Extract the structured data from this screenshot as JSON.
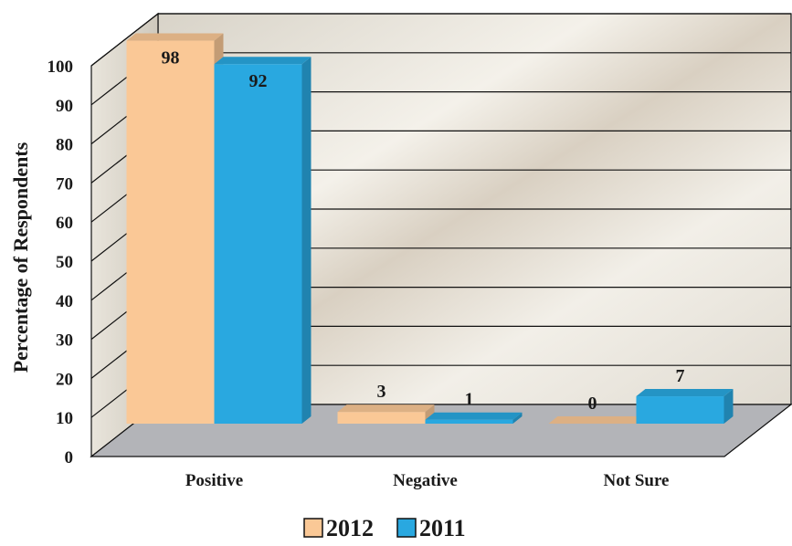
{
  "chart_data": {
    "type": "bar",
    "title": "",
    "xlabel": "",
    "ylabel": "Percentage of Respondents",
    "categories": [
      "Positive",
      "Negative",
      "Not Sure"
    ],
    "series": [
      {
        "name": "2012",
        "values": [
          98,
          3,
          0
        ],
        "labels": [
          "98",
          "3",
          "0"
        ],
        "color": "#FAC896"
      },
      {
        "name": "2011",
        "values": [
          92,
          1,
          7
        ],
        "labels": [
          "92",
          "1",
          "7"
        ],
        "color": "#29A8E0"
      }
    ],
    "ylim": [
      0,
      100
    ],
    "yticks": [
      0,
      10,
      20,
      30,
      40,
      50,
      60,
      70,
      80,
      90,
      100
    ],
    "ytick_labels": [
      "0",
      "10",
      "20",
      "30",
      "40",
      "50",
      "60",
      "70",
      "80",
      "90",
      "100"
    ],
    "grid": true,
    "legend": "bottom-center",
    "three_d": true
  }
}
